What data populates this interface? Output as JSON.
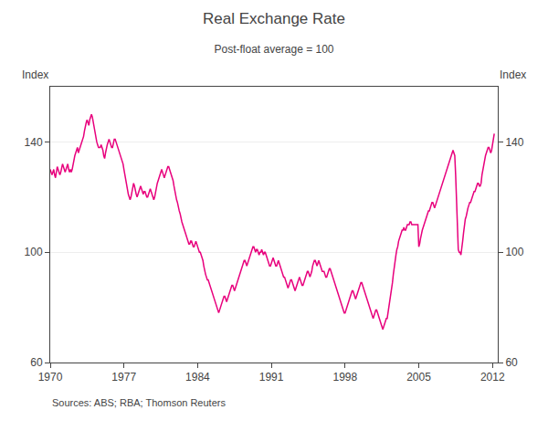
{
  "chart_data": {
    "type": "line",
    "title": "Real Exchange Rate",
    "subtitle": "Post-float average = 100",
    "ylabel": "Index",
    "y2label": "Index",
    "annotations": [
      "Sources: ABS; RBA; Thomson Reuters"
    ],
    "color": "#E8007D",
    "grid": true,
    "xlim": [
      1970.0,
      2012.5
    ],
    "xticks": [
      1970,
      1977,
      1984,
      1991,
      1998,
      2005,
      2012
    ],
    "ylim": [
      60,
      160
    ],
    "yticks": [
      60,
      100,
      140
    ],
    "y2lim": [
      60,
      160
    ],
    "y2ticks": [
      60,
      100,
      140
    ],
    "x": [
      1970.0,
      1970.083,
      1970.167,
      1970.25,
      1970.333,
      1970.417,
      1970.5,
      1970.583,
      1970.667,
      1970.75,
      1970.833,
      1970.917,
      1971.0,
      1971.083,
      1971.167,
      1971.25,
      1971.333,
      1971.417,
      1971.5,
      1971.583,
      1971.667,
      1971.75,
      1971.833,
      1971.917,
      1972.0,
      1972.083,
      1972.167,
      1972.25,
      1972.333,
      1972.417,
      1972.5,
      1972.583,
      1972.667,
      1972.75,
      1972.833,
      1972.917,
      1973.0,
      1973.083,
      1973.167,
      1973.25,
      1973.333,
      1973.417,
      1973.5,
      1973.583,
      1973.667,
      1973.75,
      1973.833,
      1973.917,
      1974.0,
      1974.083,
      1974.167,
      1974.25,
      1974.333,
      1974.417,
      1974.5,
      1974.583,
      1974.667,
      1974.75,
      1974.833,
      1974.917,
      1975.0,
      1975.083,
      1975.167,
      1975.25,
      1975.333,
      1975.417,
      1975.5,
      1975.583,
      1975.667,
      1975.75,
      1975.833,
      1975.917,
      1976.0,
      1976.083,
      1976.167,
      1976.25,
      1976.333,
      1976.417,
      1976.5,
      1976.583,
      1976.667,
      1976.75,
      1976.833,
      1976.917,
      1977.0,
      1977.083,
      1977.167,
      1977.25,
      1977.333,
      1977.417,
      1977.5,
      1977.583,
      1977.667,
      1977.75,
      1977.833,
      1977.917,
      1978.0,
      1978.083,
      1978.167,
      1978.25,
      1978.333,
      1978.417,
      1978.5,
      1978.583,
      1978.667,
      1978.75,
      1978.833,
      1978.917,
      1979.0,
      1979.083,
      1979.167,
      1979.25,
      1979.333,
      1979.417,
      1979.5,
      1979.583,
      1979.667,
      1979.75,
      1979.833,
      1979.917,
      1980.0,
      1980.083,
      1980.167,
      1980.25,
      1980.333,
      1980.417,
      1980.5,
      1980.583,
      1980.667,
      1980.75,
      1980.833,
      1980.917,
      1981.0,
      1981.083,
      1981.167,
      1981.25,
      1981.333,
      1981.417,
      1981.5,
      1981.583,
      1981.667,
      1981.75,
      1981.833,
      1981.917,
      1982.0,
      1982.083,
      1982.167,
      1982.25,
      1982.333,
      1982.417,
      1982.5,
      1982.583,
      1982.667,
      1982.75,
      1982.833,
      1982.917,
      1983.0,
      1983.083,
      1983.167,
      1983.25,
      1983.333,
      1983.417,
      1983.5,
      1983.583,
      1983.667,
      1983.75,
      1983.833,
      1983.917,
      1984.0,
      1984.083,
      1984.167,
      1984.25,
      1984.333,
      1984.417,
      1984.5,
      1984.583,
      1984.667,
      1984.75,
      1984.833,
      1984.917,
      1985.0,
      1985.083,
      1985.167,
      1985.25,
      1985.333,
      1985.417,
      1985.5,
      1985.583,
      1985.667,
      1985.75,
      1985.833,
      1985.917,
      1986.0,
      1986.083,
      1986.167,
      1986.25,
      1986.333,
      1986.417,
      1986.5,
      1986.583,
      1986.667,
      1986.75,
      1986.833,
      1986.917,
      1987.0,
      1987.083,
      1987.167,
      1987.25,
      1987.333,
      1987.417,
      1987.5,
      1987.583,
      1987.667,
      1987.75,
      1987.833,
      1987.917,
      1988.0,
      1988.083,
      1988.167,
      1988.25,
      1988.333,
      1988.417,
      1988.5,
      1988.583,
      1988.667,
      1988.75,
      1988.833,
      1988.917,
      1989.0,
      1989.083,
      1989.167,
      1989.25,
      1989.333,
      1989.417,
      1989.5,
      1989.583,
      1989.667,
      1989.75,
      1989.833,
      1989.917,
      1990.0,
      1990.083,
      1990.167,
      1990.25,
      1990.333,
      1990.417,
      1990.5,
      1990.583,
      1990.667,
      1990.75,
      1990.833,
      1990.917,
      1991.0,
      1991.083,
      1991.167,
      1991.25,
      1991.333,
      1991.417,
      1991.5,
      1991.583,
      1991.667,
      1991.75,
      1991.833,
      1991.917,
      1992.0,
      1992.083,
      1992.167,
      1992.25,
      1992.333,
      1992.417,
      1992.5,
      1992.583,
      1992.667,
      1992.75,
      1992.833,
      1992.917,
      1993.0,
      1993.083,
      1993.167,
      1993.25,
      1993.333,
      1993.417,
      1993.5,
      1993.583,
      1993.667,
      1993.75,
      1993.833,
      1993.917,
      1994.0,
      1994.083,
      1994.167,
      1994.25,
      1994.333,
      1994.417,
      1994.5,
      1994.583,
      1994.667,
      1994.75,
      1994.833,
      1994.917,
      1995.0,
      1995.083,
      1995.167,
      1995.25,
      1995.333,
      1995.417,
      1995.5,
      1995.583,
      1995.667,
      1995.75,
      1995.833,
      1995.917,
      1996.0,
      1996.083,
      1996.167,
      1996.25,
      1996.333,
      1996.417,
      1996.5,
      1996.583,
      1996.667,
      1996.75,
      1996.833,
      1996.917,
      1997.0,
      1997.083,
      1997.167,
      1997.25,
      1997.333,
      1997.417,
      1997.5,
      1997.583,
      1997.667,
      1997.75,
      1997.833,
      1997.917,
      1998.0,
      1998.083,
      1998.167,
      1998.25,
      1998.333,
      1998.417,
      1998.5,
      1998.583,
      1998.667,
      1998.75,
      1998.833,
      1998.917,
      1999.0,
      1999.083,
      1999.167,
      1999.25,
      1999.333,
      1999.417,
      1999.5,
      1999.583,
      1999.667,
      1999.75,
      1999.833,
      1999.917,
      2000.0,
      2000.083,
      2000.167,
      2000.25,
      2000.333,
      2000.417,
      2000.5,
      2000.583,
      2000.667,
      2000.75,
      2000.833,
      2000.917,
      2001.0,
      2001.083,
      2001.167,
      2001.25,
      2001.333,
      2001.417,
      2001.5,
      2001.583,
      2001.667,
      2001.75,
      2001.833,
      2001.917,
      2002.0,
      2002.083,
      2002.167,
      2002.25,
      2002.333,
      2002.417,
      2002.5,
      2002.583,
      2002.667,
      2002.75,
      2002.833,
      2002.917,
      2003.0,
      2003.083,
      2003.167,
      2003.25,
      2003.333,
      2003.417,
      2003.5,
      2003.583,
      2003.667,
      2003.75,
      2003.833,
      2003.917,
      2004.0,
      2004.083,
      2004.167,
      2004.25,
      2004.333,
      2004.417,
      2004.5,
      2004.583,
      2004.667,
      2004.75,
      2004.833,
      2004.917,
      2005.0,
      2005.083,
      2005.167,
      2005.25,
      2005.333,
      2005.417,
      2005.5,
      2005.583,
      2005.667,
      2005.75,
      2005.833,
      2005.917,
      2006.0,
      2006.083,
      2006.167,
      2006.25,
      2006.333,
      2006.417,
      2006.5,
      2006.583,
      2006.667,
      2006.75,
      2006.833,
      2006.917,
      2007.0,
      2007.083,
      2007.167,
      2007.25,
      2007.333,
      2007.417,
      2007.5,
      2007.583,
      2007.667,
      2007.75,
      2007.833,
      2007.917,
      2008.0,
      2008.083,
      2008.167,
      2008.25,
      2008.333,
      2008.417,
      2008.5,
      2008.583,
      2008.667,
      2008.75,
      2008.833,
      2008.917,
      2009.0,
      2009.083,
      2009.167,
      2009.25,
      2009.333,
      2009.417,
      2009.5,
      2009.583,
      2009.667,
      2009.75,
      2009.833,
      2009.917,
      2010.0,
      2010.083,
      2010.167,
      2010.25,
      2010.333,
      2010.417,
      2010.5,
      2010.583,
      2010.667,
      2010.75,
      2010.833,
      2010.917,
      2011.0,
      2011.083,
      2011.167,
      2011.25,
      2011.333,
      2011.417,
      2011.5,
      2011.583,
      2011.667,
      2011.75,
      2011.833,
      2011.917,
      2012.0,
      2012.083,
      2012.167
    ],
    "values": [
      130,
      129,
      128,
      129,
      130,
      128,
      127,
      129,
      131,
      130,
      129,
      128,
      129,
      131,
      132,
      131,
      130,
      129,
      130,
      131,
      132,
      130,
      129,
      130,
      129,
      130,
      132,
      134,
      135,
      136,
      137,
      138,
      136,
      137,
      138,
      139,
      140,
      141,
      142,
      144,
      146,
      147,
      148,
      147,
      146,
      148,
      149,
      150,
      149,
      147,
      145,
      143,
      141,
      140,
      139,
      138,
      138,
      138,
      139,
      138,
      137,
      135,
      134,
      136,
      138,
      139,
      140,
      141,
      140,
      139,
      138,
      138,
      140,
      141,
      141,
      140,
      139,
      138,
      137,
      136,
      135,
      134,
      133,
      132,
      130,
      128,
      126,
      124,
      122,
      121,
      120,
      119,
      120,
      122,
      124,
      125,
      124,
      122,
      121,
      120,
      121,
      122,
      123,
      124,
      123,
      122,
      121,
      122,
      122,
      121,
      120,
      120,
      121,
      122,
      123,
      122,
      121,
      120,
      119,
      120,
      122,
      123,
      125,
      126,
      127,
      128,
      129,
      130,
      129,
      128,
      127,
      128,
      129,
      130,
      131,
      131,
      130,
      129,
      128,
      127,
      126,
      124,
      122,
      120,
      119,
      118,
      116,
      115,
      114,
      112,
      111,
      110,
      109,
      108,
      107,
      106,
      105,
      104,
      103,
      103,
      104,
      104,
      103,
      102,
      102,
      103,
      104,
      103,
      102,
      101,
      100,
      100,
      99,
      98,
      97,
      95,
      93,
      92,
      91,
      90,
      90,
      89,
      88,
      87,
      86,
      85,
      84,
      83,
      82,
      81,
      80,
      79,
      78,
      79,
      80,
      81,
      82,
      83,
      84,
      84,
      83,
      82,
      83,
      84,
      85,
      86,
      87,
      88,
      88,
      87,
      86,
      87,
      88,
      89,
      90,
      91,
      92,
      93,
      94,
      95,
      96,
      97,
      97,
      96,
      95,
      96,
      97,
      98,
      99,
      100,
      101,
      102,
      102,
      101,
      100,
      101,
      101,
      100,
      99,
      100,
      100,
      101,
      100,
      99,
      100,
      100,
      99,
      98,
      97,
      96,
      95,
      95,
      96,
      97,
      98,
      97,
      96,
      95,
      95,
      96,
      97,
      96,
      95,
      94,
      93,
      92,
      91,
      91,
      90,
      89,
      88,
      87,
      88,
      89,
      90,
      90,
      89,
      88,
      87,
      86,
      87,
      88,
      89,
      90,
      91,
      90,
      89,
      88,
      88,
      89,
      90,
      91,
      92,
      93,
      93,
      92,
      91,
      92,
      93,
      95,
      96,
      97,
      97,
      96,
      95,
      96,
      97,
      96,
      95,
      94,
      93,
      93,
      93,
      92,
      91,
      91,
      92,
      93,
      94,
      94,
      93,
      92,
      91,
      90,
      89,
      88,
      87,
      86,
      85,
      84,
      83,
      82,
      81,
      80,
      79,
      78,
      78,
      79,
      80,
      81,
      82,
      83,
      84,
      85,
      86,
      86,
      85,
      84,
      83,
      84,
      85,
      86,
      87,
      88,
      89,
      89,
      88,
      87,
      86,
      85,
      84,
      83,
      82,
      81,
      80,
      79,
      78,
      77,
      76,
      77,
      78,
      79,
      79,
      78,
      77,
      76,
      75,
      74,
      73,
      72,
      73,
      74,
      75,
      76,
      76,
      78,
      80,
      82,
      84,
      86,
      89,
      92,
      95,
      97,
      99,
      101,
      102,
      104,
      105,
      106,
      107,
      108,
      108,
      109,
      108,
      108,
      109,
      110,
      110,
      110,
      111,
      111,
      110,
      110,
      110,
      110,
      110,
      110,
      110,
      110,
      102,
      103,
      105,
      107,
      108,
      109,
      110,
      111,
      112,
      113,
      114,
      115,
      115,
      116,
      117,
      118,
      118,
      117,
      116,
      117,
      118,
      119,
      120,
      121,
      122,
      123,
      124,
      125,
      126,
      127,
      128,
      129,
      130,
      131,
      132,
      133,
      134,
      135,
      136,
      137,
      136,
      135,
      128,
      118,
      108,
      101,
      100,
      100,
      99,
      101,
      104,
      107,
      110,
      112,
      113,
      115,
      116,
      117,
      118,
      118,
      119,
      120,
      121,
      122,
      122,
      123,
      124,
      125,
      125,
      124,
      124,
      125,
      128,
      130,
      132,
      134,
      135,
      136,
      137,
      138,
      138,
      137,
      136,
      137,
      139,
      141,
      143
    ]
  }
}
